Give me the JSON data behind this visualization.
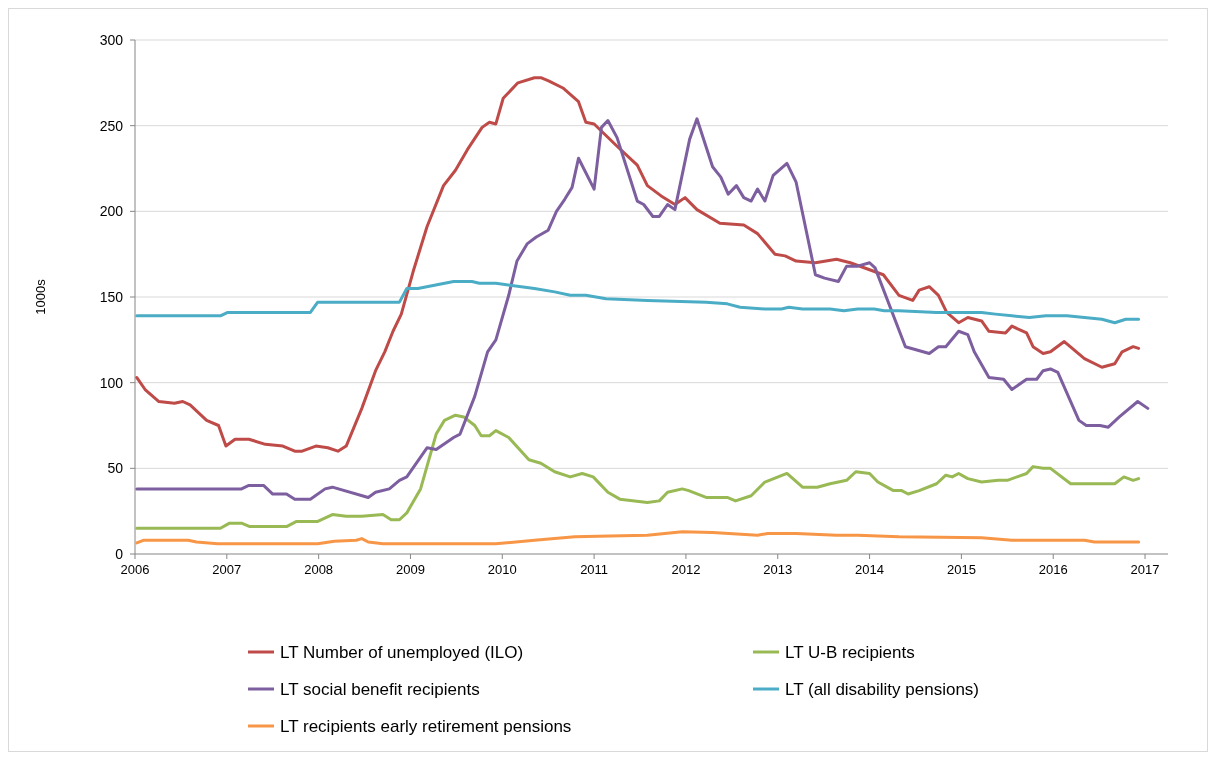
{
  "chart_data": {
    "type": "line",
    "ylabel": "1000s",
    "xlim": [
      2006,
      2017.25
    ],
    "xticks": [
      2006,
      2007,
      2008,
      2009,
      2010,
      2011,
      2012,
      2013,
      2014,
      2015,
      2016,
      2017
    ],
    "ylim": [
      0,
      300
    ],
    "yticks": [
      0,
      50,
      100,
      150,
      200,
      250,
      300
    ],
    "grid": "y",
    "legend": "bottom",
    "marker": "none",
    "line_style": "solid",
    "series": [
      {
        "name": "LT Number of unemployed (ILO)",
        "color": "#be4b48",
        "x": [
          2006.02,
          2006.11,
          2006.26,
          2006.43,
          2006.52,
          2006.6,
          2006.78,
          2006.91,
          2006.99,
          2007.09,
          2007.24,
          2007.42,
          2007.61,
          2007.74,
          2007.82,
          2007.97,
          2008.1,
          2008.21,
          2008.3,
          2008.47,
          2008.62,
          2008.72,
          2008.81,
          2008.9,
          2009.03,
          2009.18,
          2009.36,
          2009.49,
          2009.62,
          2009.78,
          2009.86,
          2009.93,
          2010.01,
          2010.17,
          2010.35,
          2010.42,
          2010.51,
          2010.66,
          2010.83,
          2010.91,
          2011.0,
          2011.25,
          2011.47,
          2011.58,
          2011.73,
          2011.88,
          2011.99,
          2012.12,
          2012.37,
          2012.63,
          2012.78,
          2012.97,
          2013.08,
          2013.2,
          2013.41,
          2013.64,
          2013.79,
          2014.15,
          2014.32,
          2014.47,
          2014.54,
          2014.65,
          2014.75,
          2014.84,
          2014.97,
          2015.07,
          2015.22,
          2015.3,
          2015.48,
          2015.55,
          2015.71,
          2015.78,
          2015.89,
          2015.97,
          2016.12,
          2016.34,
          2016.53,
          2016.67,
          2016.75,
          2016.87,
          2016.93
        ],
        "values": [
          103,
          96,
          89,
          88,
          89,
          87,
          78,
          75,
          63,
          67,
          67,
          64,
          63,
          60,
          60,
          63,
          62,
          60,
          63,
          85,
          107,
          118,
          130,
          140,
          165,
          191,
          215,
          224,
          236,
          249,
          252,
          251,
          266,
          275,
          278,
          278,
          276,
          272,
          264,
          252,
          251,
          238,
          227,
          215,
          209,
          204,
          208,
          201,
          193,
          192,
          187,
          175,
          174,
          171,
          170,
          172,
          170,
          163,
          151,
          148,
          154,
          156,
          151,
          141,
          135,
          138,
          136,
          130,
          129,
          133,
          129,
          121,
          117,
          118,
          124,
          114,
          109,
          111,
          118,
          121,
          120
        ]
      },
      {
        "name": "LT U-B recipients",
        "color": "#98b954",
        "x": [
          2006.02,
          2006.93,
          2007.03,
          2007.16,
          2007.25,
          2007.65,
          2007.76,
          2007.99,
          2008.15,
          2008.3,
          2008.47,
          2008.7,
          2008.79,
          2008.88,
          2008.96,
          2009.11,
          2009.28,
          2009.37,
          2009.49,
          2009.58,
          2009.7,
          2009.77,
          2009.86,
          2009.93,
          2010.07,
          2010.29,
          2010.42,
          2010.57,
          2010.74,
          2010.87,
          2010.99,
          2011.15,
          2011.28,
          2011.58,
          2011.71,
          2011.8,
          2011.96,
          2012.03,
          2012.22,
          2012.45,
          2012.54,
          2012.71,
          2012.86,
          2013.1,
          2013.27,
          2013.43,
          2013.57,
          2013.75,
          2013.85,
          2014.0,
          2014.09,
          2014.26,
          2014.35,
          2014.42,
          2014.54,
          2014.73,
          2014.83,
          2014.9,
          2014.97,
          2015.07,
          2015.22,
          2015.4,
          2015.5,
          2015.71,
          2015.78,
          2015.89,
          2015.97,
          2016.19,
          2016.34,
          2016.67,
          2016.77,
          2016.87,
          2016.93
        ],
        "values": [
          15,
          15,
          18,
          18,
          16,
          16,
          19,
          19,
          23,
          22,
          22,
          23,
          20,
          20,
          24,
          38,
          70,
          78,
          81,
          80,
          75,
          69,
          69,
          72,
          68,
          55,
          53,
          48,
          45,
          47,
          45,
          36,
          32,
          30,
          31,
          36,
          38,
          37,
          33,
          33,
          31,
          34,
          42,
          47,
          39,
          39,
          41,
          43,
          48,
          47,
          42,
          37,
          37,
          35,
          37,
          41,
          46,
          45,
          47,
          44,
          42,
          43,
          43,
          47,
          51,
          50,
          50,
          41,
          41,
          41,
          45,
          43,
          44
        ]
      },
      {
        "name": "LT social benefit recipients",
        "color": "#7d5fa0",
        "x": [
          2006.02,
          2007.16,
          2007.24,
          2007.4,
          2007.5,
          2007.65,
          2007.74,
          2007.91,
          2008.07,
          2008.15,
          2008.54,
          2008.62,
          2008.77,
          2008.88,
          2008.96,
          2009.18,
          2009.28,
          2009.47,
          2009.54,
          2009.7,
          2009.84,
          2009.93,
          2010.07,
          2010.16,
          2010.27,
          2010.37,
          2010.5,
          2010.59,
          2010.68,
          2010.76,
          2010.83,
          2011.0,
          2011.08,
          2011.15,
          2011.25,
          2011.47,
          2011.54,
          2011.64,
          2011.71,
          2011.8,
          2011.88,
          2012.04,
          2012.12,
          2012.29,
          2012.38,
          2012.46,
          2012.55,
          2012.63,
          2012.71,
          2012.78,
          2012.86,
          2012.95,
          2013.1,
          2013.2,
          2013.41,
          2013.51,
          2013.66,
          2013.75,
          2013.87,
          2014.0,
          2014.06,
          2014.39,
          2014.65,
          2014.75,
          2014.83,
          2014.97,
          2015.07,
          2015.14,
          2015.3,
          2015.46,
          2015.55,
          2015.71,
          2015.82,
          2015.89,
          2015.97,
          2016.05,
          2016.28,
          2016.36,
          2016.51,
          2016.6,
          2016.72,
          2016.92,
          2017.03
        ],
        "values": [
          38,
          38,
          40,
          40,
          35,
          35,
          32,
          32,
          38,
          39,
          33,
          36,
          38,
          43,
          45,
          62,
          61,
          68,
          70,
          92,
          118,
          125,
          151,
          171,
          181,
          185,
          189,
          200,
          207,
          214,
          231,
          213,
          249,
          253,
          243,
          206,
          204,
          197,
          197,
          204,
          201,
          242,
          254,
          226,
          220,
          210,
          215,
          208,
          206,
          213,
          206,
          221,
          228,
          217,
          163,
          161,
          159,
          168,
          168,
          170,
          167,
          121,
          117,
          121,
          121,
          130,
          128,
          118,
          103,
          102,
          96,
          102,
          102,
          107,
          108,
          106,
          78,
          75,
          75,
          74,
          80,
          89,
          85
        ]
      },
      {
        "name": "LT (all disability pensions)",
        "color": "#4bacc6",
        "x": [
          2006.02,
          2006.93,
          2007.01,
          2007.91,
          2007.99,
          2008.88,
          2008.96,
          2009.08,
          2009.47,
          2009.67,
          2009.75,
          2009.93,
          2010.35,
          2010.57,
          2010.74,
          2010.91,
          2011.13,
          2011.58,
          2012.22,
          2012.45,
          2012.59,
          2012.86,
          2013.04,
          2013.12,
          2013.27,
          2013.57,
          2013.72,
          2013.87,
          2014.05,
          2014.16,
          2014.32,
          2014.73,
          2015.22,
          2015.37,
          2015.55,
          2015.74,
          2015.92,
          2016.15,
          2016.34,
          2016.53,
          2016.67,
          2016.79,
          2016.93
        ],
        "values": [
          139,
          139,
          141,
          141,
          147,
          147,
          155,
          155,
          159,
          159,
          158,
          158,
          155,
          153,
          151,
          151,
          149,
          148,
          147,
          146,
          144,
          143,
          143,
          144,
          143,
          143,
          142,
          143,
          143,
          142,
          142,
          141,
          141,
          140,
          139,
          138,
          139,
          139,
          138,
          137,
          135,
          137,
          137
        ]
      },
      {
        "name": "LT recipients early retirement pensions",
        "color": "#f79646",
        "x": [
          2006.02,
          2006.09,
          2006.58,
          2006.67,
          2006.9,
          2007.99,
          2008.17,
          2008.41,
          2008.47,
          2008.54,
          2008.7,
          2009.93,
          2010.35,
          2010.79,
          2011.17,
          2011.58,
          2011.96,
          2012.29,
          2012.78,
          2012.89,
          2013.2,
          2013.64,
          2013.87,
          2014.32,
          2015.22,
          2015.55,
          2016.34,
          2016.45,
          2016.93
        ],
        "values": [
          6.5,
          8,
          8,
          7,
          6,
          6,
          7.5,
          8,
          9,
          7,
          6,
          6,
          8,
          10,
          10.5,
          11,
          13,
          12.5,
          11,
          12,
          12,
          11,
          11,
          10,
          9.5,
          8,
          8,
          7,
          7
        ]
      }
    ]
  }
}
